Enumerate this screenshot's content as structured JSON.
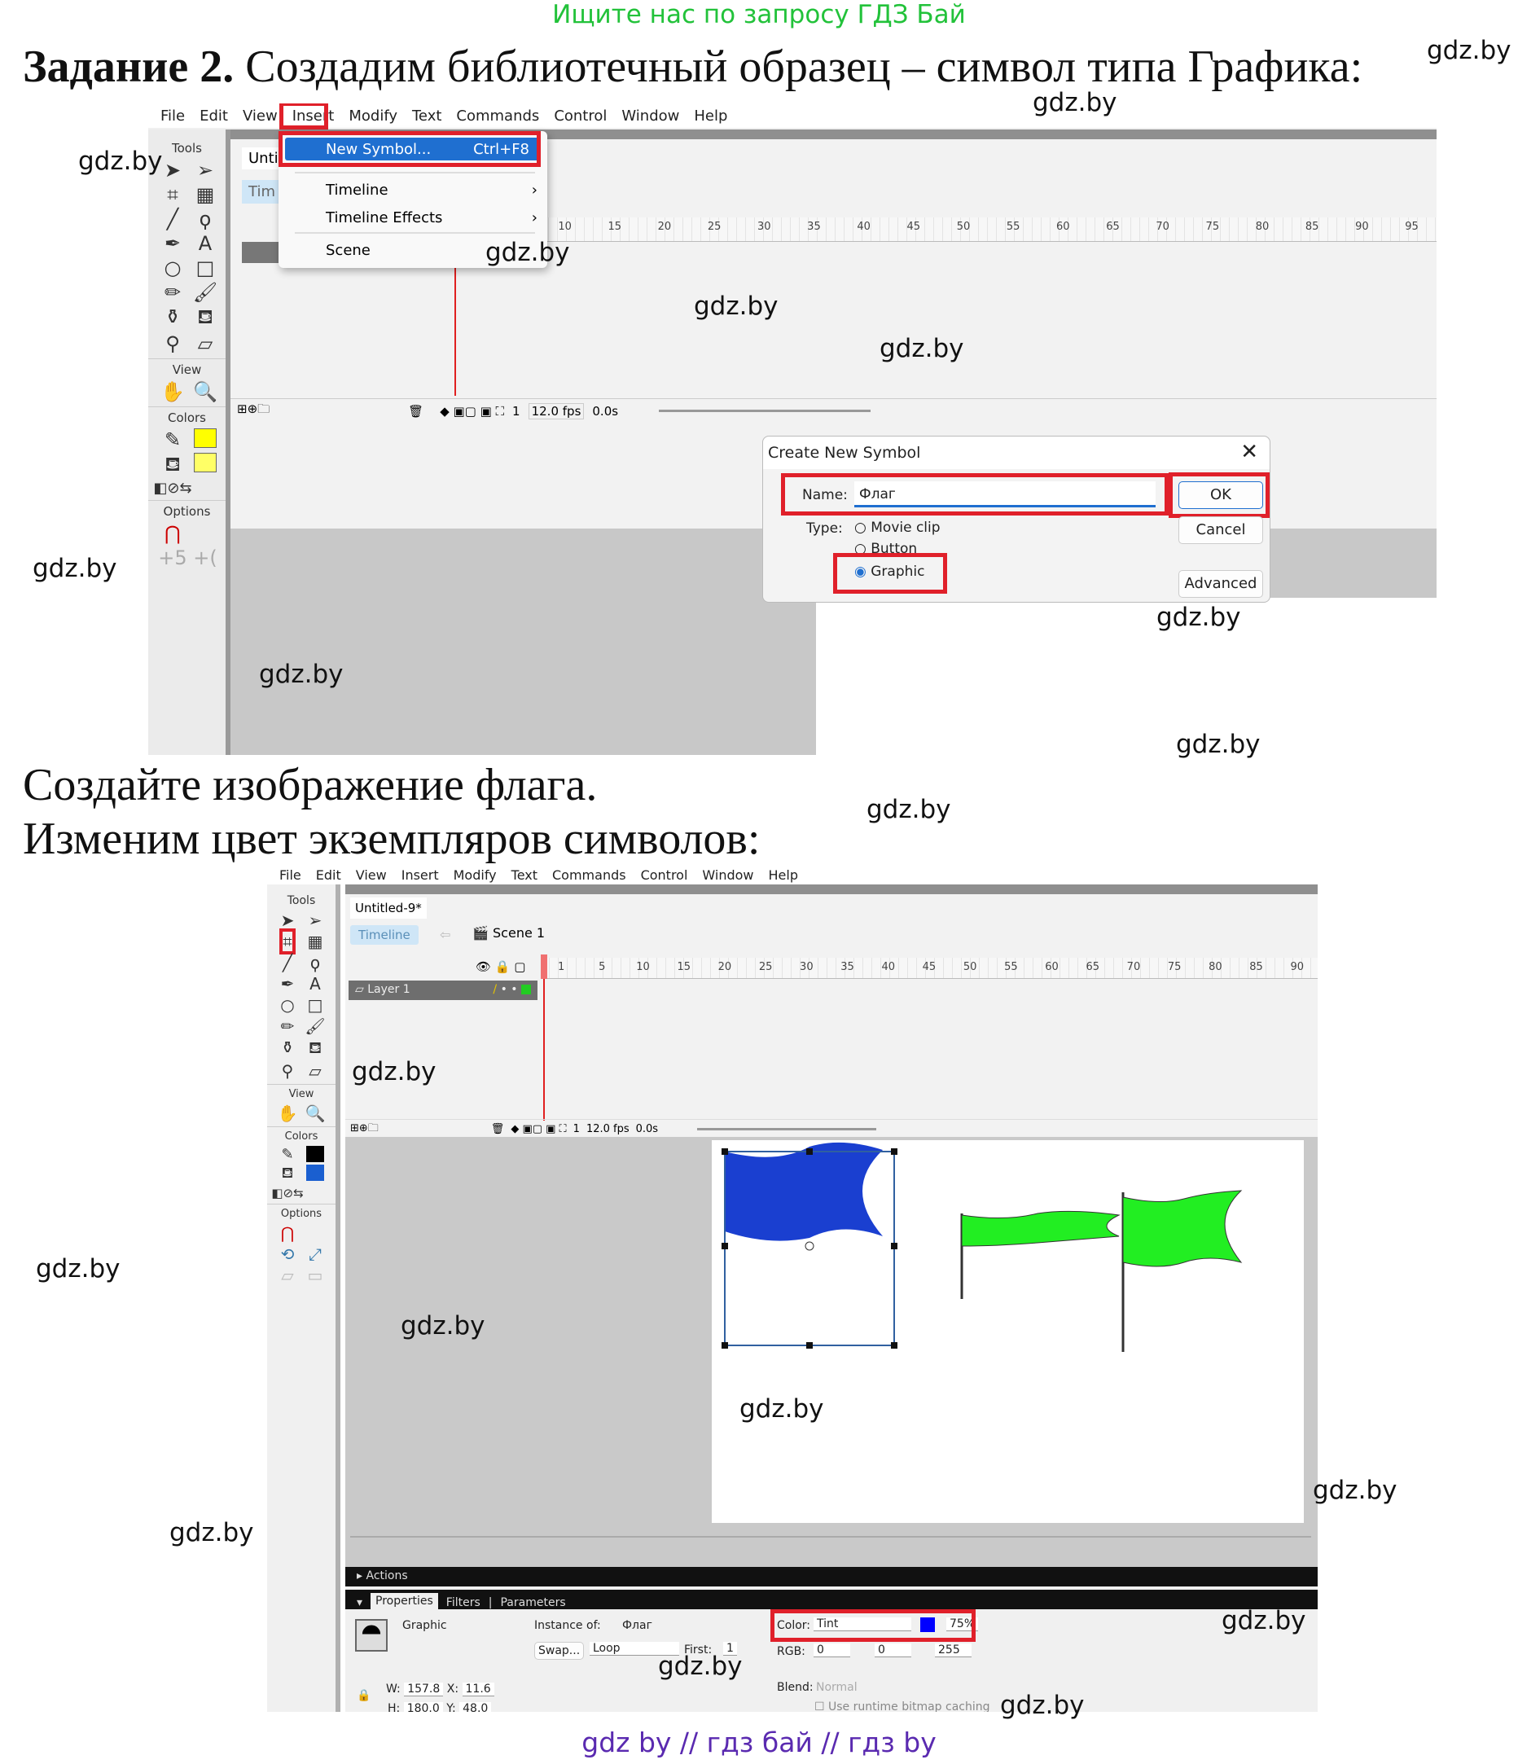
{
  "top_link": "Ищите нас по запросу ГДЗ Бай",
  "heading": {
    "bold": "Задание 2.",
    "rest": " Создадим библиотечный образец – символ типа Графика:"
  },
  "watermark": "gdz.by",
  "menu": [
    "File",
    "Edit",
    "View",
    "Insert",
    "Modify",
    "Text",
    "Commands",
    "Control",
    "Window",
    "Help"
  ],
  "shot1": {
    "tab_partial": "Unti",
    "timeline_partial": "Tim",
    "insert_menu": [
      {
        "label": "New Symbol...",
        "shortcut": "Ctrl+F8",
        "highlighted": true
      },
      {
        "label": "Timeline",
        "submenu": true
      },
      {
        "label": "Timeline Effects",
        "submenu": true
      },
      {
        "label": "Scene"
      }
    ],
    "frames": [
      "10",
      "15",
      "20",
      "25",
      "30",
      "35",
      "40",
      "45",
      "50",
      "55",
      "60",
      "65",
      "70",
      "75",
      "80",
      "85",
      "90",
      "95"
    ],
    "status": {
      "frame": "1",
      "fps": "12.0 fps",
      "time": "0.0s"
    },
    "dialog": {
      "title": "Create New Symbol",
      "name_label": "Name:",
      "name_value": "Флаг",
      "type_label": "Type:",
      "types": [
        "Movie clip",
        "Button",
        "Graphic"
      ],
      "selected_type": "Graphic",
      "ok": "OK",
      "cancel": "Cancel",
      "advanced": "Advanced"
    }
  },
  "tools_labels": {
    "tools": "Tools",
    "view": "View",
    "colors": "Colors",
    "options": "Options"
  },
  "line2": "Создайте изображение флага.",
  "line3": "Изменим цвет экземпляров символов:",
  "shot2": {
    "doc_tab": "Untitled-9*",
    "timeline_btn": "Timeline",
    "scene": "Scene 1",
    "layer": "Layer 1",
    "frames": [
      "1",
      "5",
      "10",
      "15",
      "20",
      "25",
      "30",
      "35",
      "40",
      "45",
      "50",
      "55",
      "60",
      "65",
      "70",
      "75",
      "80",
      "85",
      "90"
    ],
    "status": {
      "frame": "1",
      "fps": "12.0 fps",
      "time": "0.0s"
    },
    "colors": {
      "blue_flag": "#1a3fd0",
      "green_flag": "#22ee22"
    },
    "panels": {
      "actions": "Actions",
      "tabs": [
        "Properties",
        "Filters",
        "Parameters"
      ]
    },
    "props": {
      "symbol_type": "Graphic",
      "instance_label": "Instance of:",
      "instance_value": "Флаг",
      "swap": "Swap...",
      "loop": "Loop",
      "first_label": "First:",
      "first_value": "1",
      "color_label": "Color:",
      "color_value": "Tint",
      "tint_pct": "75%",
      "rgb_label": "RGB:",
      "r": "0",
      "g": "0",
      "b": "255",
      "blend_label": "Blend:",
      "blend_value": "Normal",
      "cache_label": "Use runtime bitmap caching",
      "w_label": "W:",
      "w": "157.8",
      "x_label": "X:",
      "x": "11.6",
      "h_label": "H:",
      "h": "180.0",
      "y_label": "Y:",
      "y": "48.0"
    }
  },
  "footer": "gdz by  //  гдз бай  //  гдз by"
}
